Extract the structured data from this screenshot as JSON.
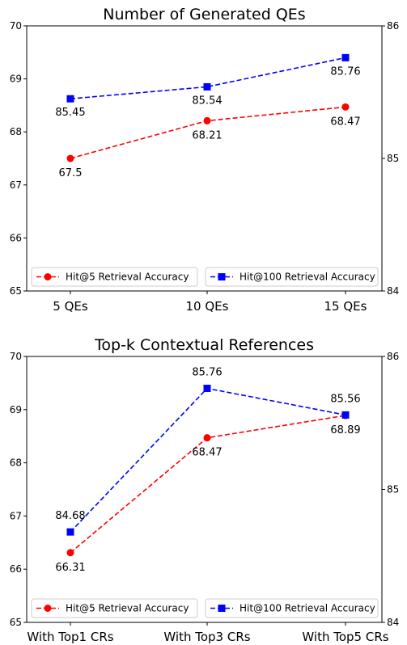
{
  "chart_data": [
    {
      "type": "line",
      "title": "Number of Generated QEs",
      "categories": [
        "5 QEs",
        "10 QEs",
        "15 QEs"
      ],
      "ylim_left": [
        65,
        70
      ],
      "yticks_left": [
        "65",
        "66",
        "67",
        "68",
        "69",
        "70"
      ],
      "ylim_right": [
        84,
        86
      ],
      "yticks_right": [
        "84",
        "85",
        "86"
      ],
      "legend_placement": "lower center",
      "grid": false,
      "series": [
        {
          "name": "Hit@5 Retrieval Accuracy",
          "axis": "left",
          "color": "#ff0000",
          "marker": "circle",
          "values": [
            67.5,
            68.21,
            68.47
          ],
          "labels": [
            "67.5",
            "68.21",
            "68.47"
          ]
        },
        {
          "name": "Hit@100 Retrieval Accuracy",
          "axis": "right",
          "color": "#0000ff",
          "marker": "square",
          "values": [
            85.45,
            85.54,
            85.76
          ],
          "labels": [
            "85.45",
            "85.54",
            "85.76"
          ]
        }
      ]
    },
    {
      "type": "line",
      "title": "Top-k Contextual References",
      "categories": [
        "With Top1 CRs",
        "With Top3 CRs",
        "With Top5 CRs"
      ],
      "ylim_left": [
        65,
        70
      ],
      "yticks_left": [
        "65",
        "66",
        "67",
        "68",
        "69",
        "70"
      ],
      "ylim_right": [
        84,
        86
      ],
      "yticks_right": [
        "84",
        "85",
        "86"
      ],
      "legend_placement": "lower center",
      "grid": false,
      "series": [
        {
          "name": "Hit@5 Retrieval Accuracy",
          "axis": "left",
          "color": "#ff0000",
          "marker": "circle",
          "values": [
            66.31,
            68.47,
            68.89
          ],
          "labels": [
            "66.31",
            "68.47",
            "68.89"
          ]
        },
        {
          "name": "Hit@100 Retrieval Accuracy",
          "axis": "right",
          "color": "#0000ff",
          "marker": "square",
          "values": [
            84.68,
            85.76,
            85.56
          ],
          "labels": [
            "84.68",
            "85.76",
            "85.56"
          ]
        }
      ]
    }
  ]
}
